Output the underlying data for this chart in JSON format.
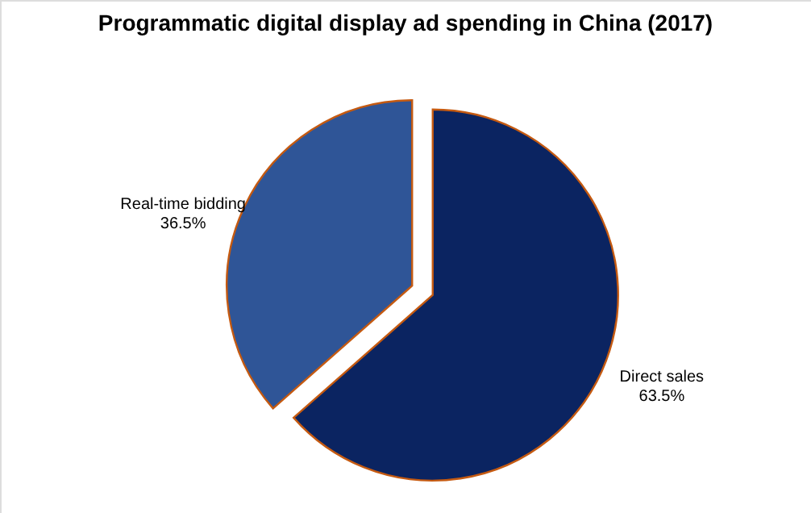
{
  "chart_data": {
    "type": "pie",
    "title": "Programmatic digital display ad spending in China (2017)",
    "categories": [
      "Direct sales",
      "Real-time bidding"
    ],
    "values": [
      63.5,
      36.5
    ],
    "value_labels": [
      "63.5%",
      "36.5%"
    ],
    "colors": [
      "#0b2461",
      "#2f5597"
    ]
  }
}
